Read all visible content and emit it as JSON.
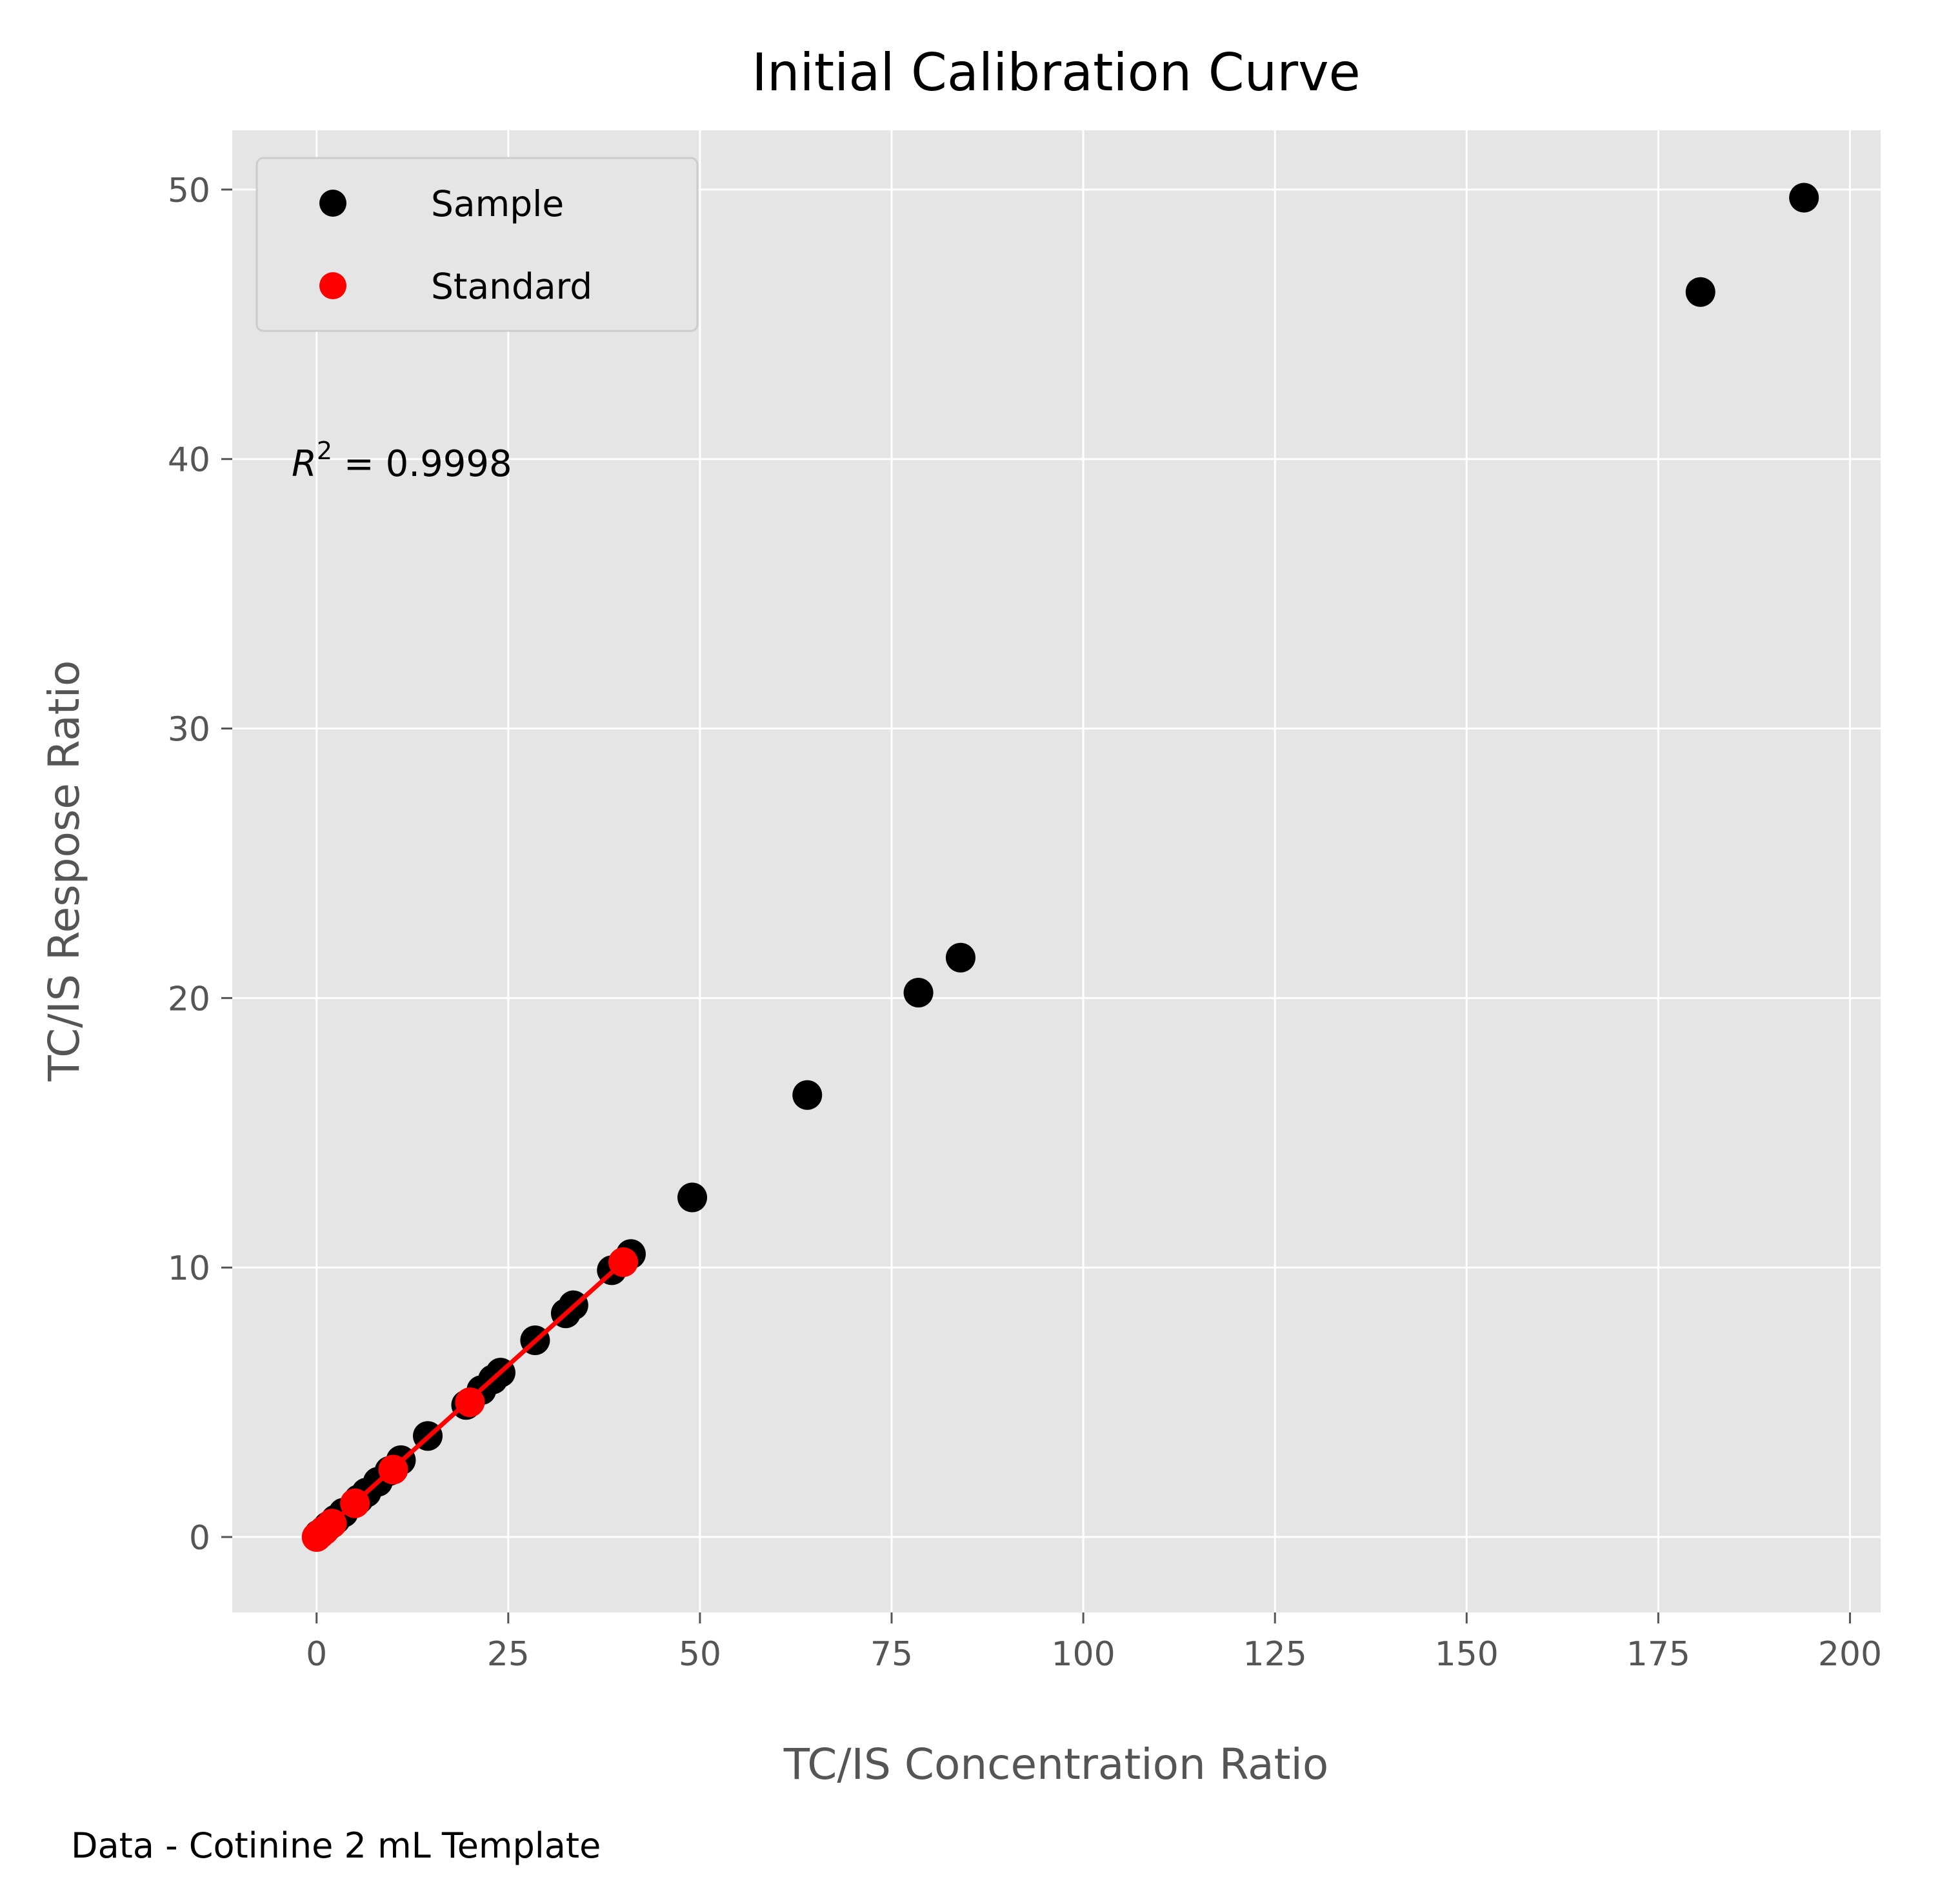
{
  "chart_data": {
    "type": "scatter",
    "title": "Initial Calibration Curve",
    "xlabel": "TC/IS Concentration Ratio",
    "ylabel": "TC/IS Respose Ratio",
    "xlim": [
      -11,
      204
    ],
    "ylim": [
      -2.8,
      52.2
    ],
    "xticks": [
      0,
      25,
      50,
      75,
      100,
      125,
      150,
      175,
      200
    ],
    "yticks": [
      0,
      10,
      20,
      30,
      40,
      50
    ],
    "grid": true,
    "legend_position": "top-left",
    "annotation": {
      "prefix": "R",
      "superscript": "2",
      "text": " = 0.9998"
    },
    "footer": "Data - Cotinine 2 mL Template",
    "series": [
      {
        "name": "Sample",
        "type": "scatter",
        "color": "#000000",
        "x": [
          0.3,
          1.0,
          1.5,
          2.5,
          3.5,
          5.5,
          6.5,
          8.0,
          9.5,
          11.0,
          14.5,
          19.5,
          21.5,
          23.0,
          24.0,
          28.5,
          32.5,
          33.5,
          38.5,
          41.0,
          49.0,
          64.0,
          78.5,
          84.0,
          180.5,
          194.0
        ],
        "y": [
          0.1,
          0.25,
          0.4,
          0.65,
          0.9,
          1.4,
          1.65,
          2.05,
          2.45,
          2.85,
          3.75,
          4.9,
          5.45,
          5.85,
          6.1,
          7.3,
          8.3,
          8.6,
          9.9,
          10.5,
          12.6,
          16.4,
          20.2,
          21.5,
          46.2,
          49.7
        ]
      },
      {
        "name": "Standard",
        "type": "scatter",
        "color": "#ff0000",
        "x": [
          0,
          0.5,
          1,
          2,
          5,
          10,
          20,
          40
        ],
        "y": [
          0,
          0.13,
          0.25,
          0.5,
          1.25,
          2.5,
          5.0,
          10.2
        ]
      },
      {
        "type": "line",
        "color": "#ff0000",
        "x": [
          0,
          40
        ],
        "y": [
          0,
          10.2
        ]
      }
    ]
  }
}
